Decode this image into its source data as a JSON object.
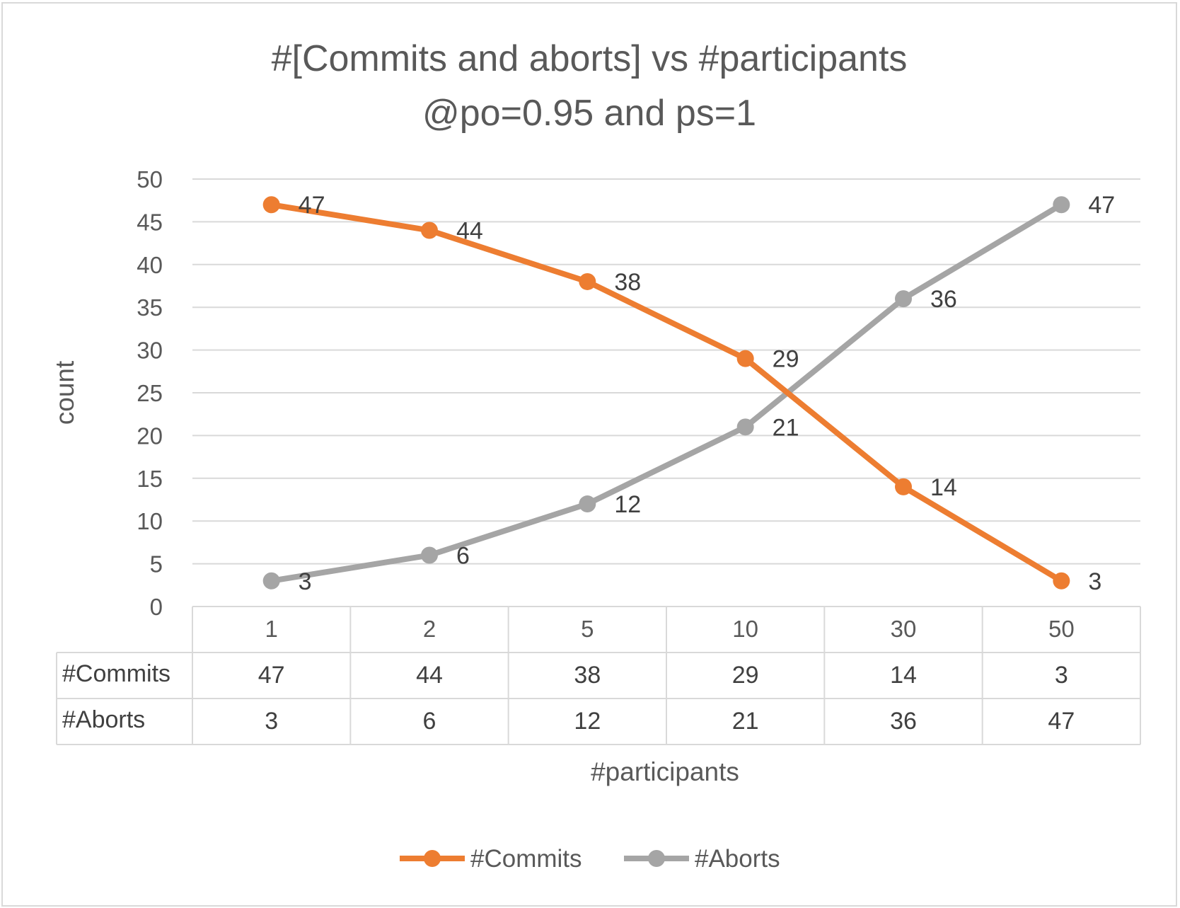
{
  "chart_data": {
    "type": "line",
    "title_lines": [
      "#[Commits and aborts] vs #participants",
      "@po=0.95 and ps=1"
    ],
    "xlabel": "#participants",
    "ylabel": "count",
    "categories": [
      "1",
      "2",
      "5",
      "10",
      "30",
      "50"
    ],
    "ylim": [
      0,
      50
    ],
    "yticks": [
      0,
      5,
      10,
      15,
      20,
      25,
      30,
      35,
      40,
      45,
      50
    ],
    "grid": true,
    "legend_position": "bottom",
    "data_table": true,
    "series": [
      {
        "name": "#Commits",
        "values": [
          47,
          44,
          38,
          29,
          14,
          3
        ],
        "color": "#ED7D31"
      },
      {
        "name": "#Aborts",
        "values": [
          3,
          6,
          12,
          21,
          36,
          47
        ],
        "color": "#A5A5A5"
      }
    ]
  }
}
